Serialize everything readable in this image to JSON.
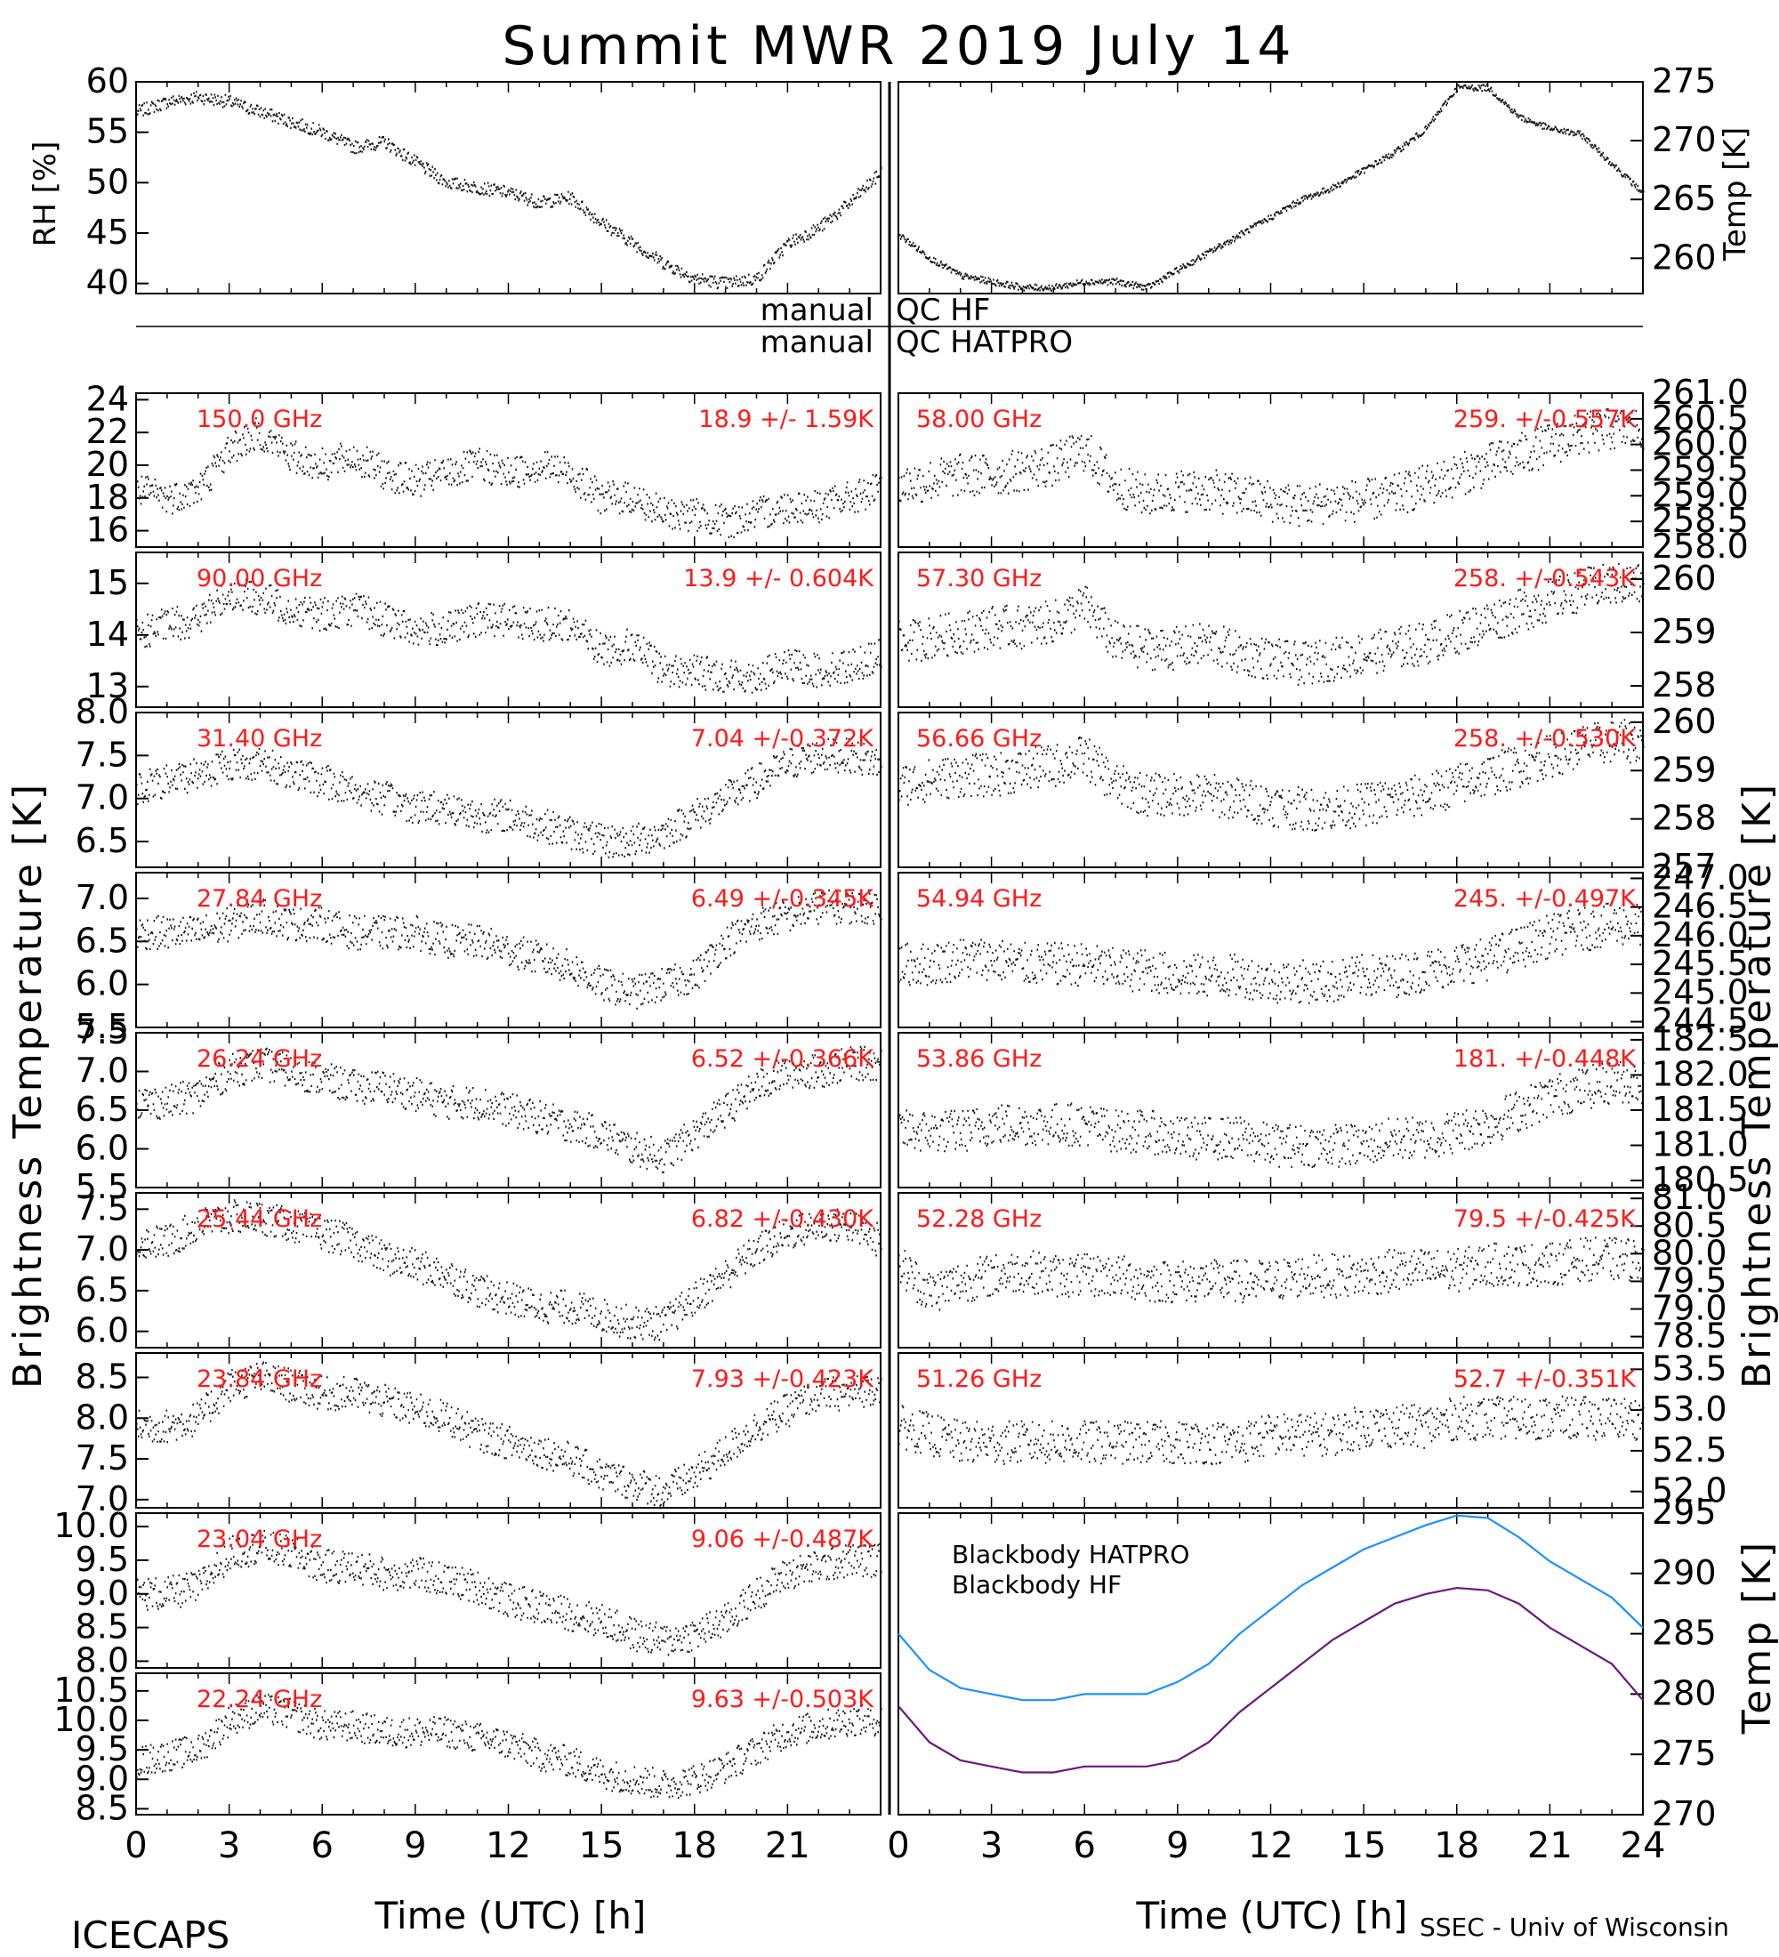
{
  "title": "Summit MWR 2019 July 14",
  "footer": {
    "left": "ICECAPS",
    "right": "SSEC - Univ of Wisconsin"
  },
  "qc": {
    "mid": "manual",
    "label1": "QC HF",
    "label2": "QC HATPRO",
    "mid2": "manual"
  },
  "axes": {
    "bottom_label_left": "Time (UTC) [h]",
    "bottom_label_right": "Time (UTC) [h]",
    "left_label": "Brightness Temperature [K]",
    "right_label_mid": "Brightness Temperature [K]",
    "rh_label": "RH [%]",
    "temp_label": "Temp [K]",
    "bb_temp_label": "Temp [K]",
    "x_ticks_left": [
      "0",
      "3",
      "6",
      "9",
      "12",
      "15",
      "18",
      "21"
    ],
    "x_ticks_right": [
      "0",
      "3",
      "6",
      "9",
      "12",
      "15",
      "18",
      "21",
      "24"
    ]
  },
  "chart_data": [
    {
      "type": "scatter",
      "name": "rh",
      "ylabel": "RH [%]",
      "xlim": [
        0,
        24
      ],
      "ylim": [
        39,
        60
      ],
      "yticks": [
        "60",
        "55",
        "50",
        "45",
        "40"
      ],
      "x": [
        0,
        1,
        2,
        3,
        4,
        5,
        6,
        7,
        8,
        9,
        10,
        11,
        12,
        13,
        14,
        15,
        16,
        17,
        18,
        19,
        20,
        21,
        22,
        23,
        24
      ],
      "y": [
        57,
        58,
        58.5,
        58,
        57,
        56,
        55,
        53.5,
        54,
        52,
        50,
        49.5,
        49,
        48,
        48.5,
        46,
        44,
        42,
        40.5,
        40,
        40.5,
        44,
        45.5,
        48,
        51
      ]
    },
    {
      "type": "scatter",
      "name": "temp",
      "ylabel": "Temp [K]",
      "xlim": [
        0,
        24
      ],
      "ylim": [
        257,
        275
      ],
      "yticks": [
        "275",
        "270",
        "265",
        "260"
      ],
      "x": [
        0,
        1,
        2,
        3,
        4,
        5,
        6,
        7,
        8,
        9,
        10,
        11,
        12,
        13,
        14,
        15,
        16,
        17,
        18,
        19,
        20,
        21,
        22,
        23,
        24
      ],
      "y": [
        262,
        260,
        258.5,
        258,
        257.5,
        257.5,
        258,
        258,
        257.5,
        259,
        260.5,
        262,
        263.5,
        265,
        266,
        267.5,
        269,
        271,
        274.5,
        274.5,
        272,
        271,
        270.5,
        268,
        265.5
      ]
    },
    {
      "type": "scatter",
      "freq": "150.0 GHz",
      "stat": "18.9 +/-  1.59K",
      "xlim": [
        0,
        24
      ],
      "ylim": [
        15,
        24.4
      ],
      "yticks": [
        "24",
        "22",
        "20",
        "18",
        "16"
      ],
      "x": [
        0,
        1,
        2,
        3,
        4,
        5,
        6,
        7,
        8,
        9,
        10,
        11,
        12,
        13,
        14,
        15,
        16,
        17,
        18,
        19,
        20,
        21,
        22,
        23,
        24
      ],
      "y": [
        18.5,
        18,
        18.5,
        21,
        22,
        20.5,
        20,
        20.5,
        19.5,
        19,
        19.5,
        20,
        19.5,
        20,
        19.5,
        18,
        18,
        17,
        17,
        16.5,
        17,
        17.5,
        17.5,
        18,
        18.5
      ]
    },
    {
      "type": "scatter",
      "freq": "90.00 GHz",
      "stat": "13.9 +/- 0.604K",
      "xlim": [
        0,
        24
      ],
      "ylim": [
        12.6,
        15.6
      ],
      "yticks": [
        "15",
        "14",
        "13"
      ],
      "x": [
        0,
        1,
        2,
        3,
        4,
        5,
        6,
        7,
        8,
        9,
        10,
        11,
        12,
        13,
        14,
        15,
        16,
        17,
        18,
        19,
        20,
        21,
        22,
        23,
        24
      ],
      "y": [
        14,
        14.2,
        14.3,
        14.8,
        14.7,
        14.5,
        14.4,
        14.5,
        14.3,
        14.1,
        14.1,
        14.3,
        14.3,
        14.2,
        14.2,
        13.7,
        13.8,
        13.3,
        13.3,
        13.2,
        13.2,
        13.4,
        13.3,
        13.4,
        13.6
      ]
    },
    {
      "type": "scatter",
      "freq": "31.40 GHz",
      "stat": "7.04 +/-0.372K",
      "xlim": [
        0,
        24
      ],
      "ylim": [
        6.2,
        8.0
      ],
      "yticks": [
        "8.0",
        "7.5",
        "7.0",
        "6.5"
      ],
      "x": [
        0,
        1,
        2,
        3,
        4,
        5,
        6,
        7,
        8,
        9,
        10,
        11,
        12,
        13,
        14,
        15,
        16,
        17,
        18,
        19,
        20,
        21,
        22,
        23,
        24
      ],
      "y": [
        7.1,
        7.2,
        7.3,
        7.4,
        7.4,
        7.3,
        7.2,
        7.1,
        7.0,
        6.9,
        6.9,
        6.8,
        6.8,
        6.7,
        6.6,
        6.5,
        6.5,
        6.6,
        6.8,
        7.0,
        7.2,
        7.4,
        7.5,
        7.5,
        7.4
      ]
    },
    {
      "type": "scatter",
      "freq": "27.84 GHz",
      "stat": "6.49 +/-0.345K",
      "xlim": [
        0,
        24
      ],
      "ylim": [
        5.5,
        7.3
      ],
      "yticks": [
        "7.0",
        "6.5",
        "6.0",
        "5.5"
      ],
      "x": [
        0,
        1,
        2,
        3,
        4,
        5,
        6,
        7,
        8,
        9,
        10,
        11,
        12,
        13,
        14,
        15,
        16,
        17,
        18,
        19,
        20,
        21,
        22,
        23,
        24
      ],
      "y": [
        6.6,
        6.6,
        6.6,
        6.7,
        6.8,
        6.7,
        6.7,
        6.6,
        6.6,
        6.6,
        6.5,
        6.5,
        6.4,
        6.3,
        6.2,
        6.0,
        5.9,
        6.0,
        6.1,
        6.5,
        6.7,
        6.8,
        6.9,
        6.9,
        6.9
      ]
    },
    {
      "type": "scatter",
      "freq": "26.24 GHz",
      "stat": "6.52 +/-0.366K",
      "xlim": [
        0,
        24
      ],
      "ylim": [
        5.5,
        7.5
      ],
      "yticks": [
        "7.5",
        "7.0",
        "6.5",
        "6.0",
        "5.5"
      ],
      "x": [
        0,
        1,
        2,
        3,
        4,
        5,
        6,
        7,
        8,
        9,
        10,
        11,
        12,
        13,
        14,
        15,
        16,
        17,
        18,
        19,
        20,
        21,
        22,
        23,
        24
      ],
      "y": [
        6.6,
        6.6,
        6.7,
        7.0,
        7.1,
        7.0,
        6.9,
        6.8,
        6.8,
        6.7,
        6.6,
        6.6,
        6.5,
        6.4,
        6.3,
        6.2,
        6.0,
        5.9,
        6.2,
        6.5,
        6.8,
        7.0,
        7.0,
        7.1,
        7.1
      ]
    },
    {
      "type": "scatter",
      "freq": "25.44 GHz",
      "stat": "6.82 +/-0.430K",
      "xlim": [
        0,
        24
      ],
      "ylim": [
        5.8,
        7.7
      ],
      "yticks": [
        "7.5",
        "7.0",
        "6.5",
        "6.0"
      ],
      "x": [
        0,
        1,
        2,
        3,
        4,
        5,
        6,
        7,
        8,
        9,
        10,
        11,
        12,
        13,
        14,
        15,
        16,
        17,
        18,
        19,
        20,
        21,
        22,
        23,
        24
      ],
      "y": [
        7.1,
        7.1,
        7.3,
        7.4,
        7.4,
        7.3,
        7.2,
        7.1,
        6.9,
        6.8,
        6.7,
        6.5,
        6.4,
        6.3,
        6.3,
        6.2,
        6.1,
        6.1,
        6.4,
        6.7,
        7.0,
        7.2,
        7.3,
        7.3,
        7.1
      ]
    },
    {
      "type": "scatter",
      "freq": "23.84 GHz",
      "stat": "7.93 +/-0.423K",
      "xlim": [
        0,
        24
      ],
      "ylim": [
        6.9,
        8.8
      ],
      "yticks": [
        "8.5",
        "8.0",
        "7.5",
        "7.0"
      ],
      "x": [
        0,
        1,
        2,
        3,
        4,
        5,
        6,
        7,
        8,
        9,
        10,
        11,
        12,
        13,
        14,
        15,
        16,
        17,
        18,
        19,
        20,
        21,
        22,
        23,
        24
      ],
      "y": [
        7.9,
        7.9,
        8.0,
        8.4,
        8.5,
        8.4,
        8.3,
        8.3,
        8.2,
        8.1,
        8.0,
        7.8,
        7.7,
        7.6,
        7.5,
        7.3,
        7.2,
        7.1,
        7.3,
        7.6,
        7.9,
        8.1,
        8.3,
        8.3,
        8.4
      ]
    },
    {
      "type": "scatter",
      "freq": "23.04 GHz",
      "stat": "9.06 +/-0.487K",
      "xlim": [
        0,
        24
      ],
      "ylim": [
        7.9,
        10.2
      ],
      "yticks": [
        "10.0",
        "9.5",
        "9.0",
        "8.5",
        "8.0"
      ],
      "x": [
        0,
        1,
        2,
        3,
        4,
        5,
        6,
        7,
        8,
        9,
        10,
        11,
        12,
        13,
        14,
        15,
        16,
        17,
        18,
        19,
        20,
        21,
        22,
        23,
        24
      ],
      "y": [
        9.0,
        9.0,
        9.1,
        9.6,
        9.7,
        9.6,
        9.4,
        9.4,
        9.3,
        9.3,
        9.2,
        9.1,
        8.9,
        8.8,
        8.7,
        8.6,
        8.4,
        8.3,
        8.4,
        8.6,
        9.0,
        9.3,
        9.4,
        9.5,
        9.5
      ]
    },
    {
      "type": "scatter",
      "freq": "22.24 GHz",
      "stat": "9.63 +/-0.503K",
      "xlim": [
        0,
        24
      ],
      "ylim": [
        8.4,
        10.8
      ],
      "yticks": [
        "10.5",
        "10.0",
        "9.5",
        "9.0",
        "8.5"
      ],
      "x": [
        0,
        1,
        2,
        3,
        4,
        5,
        6,
        7,
        8,
        9,
        10,
        11,
        12,
        13,
        14,
        15,
        16,
        17,
        18,
        19,
        20,
        21,
        22,
        23,
        24
      ],
      "y": [
        9.3,
        9.4,
        9.5,
        10.0,
        10.2,
        10.1,
        9.9,
        9.9,
        9.8,
        9.8,
        9.8,
        9.7,
        9.6,
        9.4,
        9.3,
        9.1,
        9.0,
        8.9,
        9.0,
        9.2,
        9.5,
        9.8,
        9.9,
        10.0,
        10.0
      ]
    },
    {
      "type": "scatter",
      "freq": "58.00 GHz",
      "stat": "259. +/-0.557K",
      "xlim": [
        0,
        24
      ],
      "ylim": [
        258,
        261
      ],
      "yticks": [
        "261.0",
        "260.5",
        "260.0",
        "259.5",
        "259.0",
        "258.5",
        "258.0"
      ],
      "x": [
        0,
        1,
        2,
        3,
        4,
        5,
        6,
        7,
        8,
        9,
        10,
        11,
        12,
        13,
        14,
        15,
        16,
        17,
        18,
        19,
        20,
        21,
        22,
        23,
        24
      ],
      "y": [
        259.2,
        259.3,
        259.4,
        259.4,
        259.5,
        259.6,
        259.9,
        259.2,
        259.0,
        259.1,
        259.1,
        259.0,
        258.9,
        258.8,
        258.9,
        258.9,
        259.0,
        259.2,
        259.4,
        259.6,
        259.8,
        260.0,
        260.2,
        260.3,
        260.3
      ]
    },
    {
      "type": "scatter",
      "freq": "57.30 GHz",
      "stat": "258. +/-0.543K",
      "xlim": [
        0,
        24
      ],
      "ylim": [
        257.6,
        260.5
      ],
      "yticks": [
        "260",
        "259",
        "258"
      ],
      "x": [
        0,
        1,
        2,
        3,
        4,
        5,
        6,
        7,
        8,
        9,
        10,
        11,
        12,
        13,
        14,
        15,
        16,
        17,
        18,
        19,
        20,
        21,
        22,
        23,
        24
      ],
      "y": [
        258.8,
        258.9,
        259.0,
        259.1,
        259.1,
        259.2,
        259.5,
        258.8,
        258.7,
        258.7,
        258.8,
        258.6,
        258.5,
        258.4,
        258.5,
        258.6,
        258.7,
        258.8,
        259.0,
        259.2,
        259.4,
        259.6,
        259.8,
        259.9,
        259.9
      ]
    },
    {
      "type": "scatter",
      "freq": "56.66 GHz",
      "stat": "258. +/-0.530K",
      "xlim": [
        0,
        24
      ],
      "ylim": [
        257,
        260.2
      ],
      "yticks": [
        "260",
        "259",
        "258",
        "257"
      ],
      "x": [
        0,
        1,
        2,
        3,
        4,
        5,
        6,
        7,
        8,
        9,
        10,
        11,
        12,
        13,
        14,
        15,
        16,
        17,
        18,
        19,
        20,
        21,
        22,
        23,
        24
      ],
      "y": [
        258.7,
        258.8,
        258.9,
        258.9,
        259.0,
        259.1,
        259.3,
        258.7,
        258.5,
        258.5,
        258.5,
        258.4,
        258.3,
        258.2,
        258.2,
        258.3,
        258.4,
        258.5,
        258.7,
        258.9,
        259.1,
        259.3,
        259.5,
        259.6,
        259.6
      ]
    },
    {
      "type": "scatter",
      "freq": "54.94 GHz",
      "stat": "245. +/-0.497K",
      "xlim": [
        0,
        24
      ],
      "ylim": [
        244.4,
        247.1
      ],
      "yticks": [
        "247.0",
        "246.5",
        "246.0",
        "245.5",
        "245.0",
        "244.5"
      ],
      "x": [
        0,
        1,
        2,
        3,
        4,
        5,
        6,
        7,
        8,
        9,
        10,
        11,
        12,
        13,
        14,
        15,
        16,
        17,
        18,
        19,
        20,
        21,
        22,
        23,
        24
      ],
      "y": [
        245.5,
        245.5,
        245.6,
        245.6,
        245.5,
        245.5,
        245.5,
        245.4,
        245.4,
        245.3,
        245.3,
        245.3,
        245.2,
        245.2,
        245.2,
        245.3,
        245.3,
        245.4,
        245.5,
        245.6,
        245.8,
        246.0,
        246.1,
        246.2,
        246.2
      ]
    },
    {
      "type": "scatter",
      "freq": "53.86 GHz",
      "stat": "181. +/-0.448K",
      "xlim": [
        0,
        24
      ],
      "ylim": [
        180.4,
        182.6
      ],
      "yticks": [
        "182.5",
        "182.0",
        "181.5",
        "181.0",
        "180.5"
      ],
      "x": [
        0,
        1,
        2,
        3,
        4,
        5,
        6,
        7,
        8,
        9,
        10,
        11,
        12,
        13,
        14,
        15,
        16,
        17,
        18,
        19,
        20,
        21,
        22,
        23,
        24
      ],
      "y": [
        181.2,
        181.2,
        181.2,
        181.3,
        181.3,
        181.3,
        181.3,
        181.2,
        181.2,
        181.1,
        181.1,
        181.1,
        181.0,
        181.0,
        181.0,
        181.0,
        181.1,
        181.1,
        181.2,
        181.3,
        181.5,
        181.7,
        181.8,
        181.9,
        181.9
      ]
    },
    {
      "type": "scatter",
      "freq": "52.28 GHz",
      "stat": "79.5 +/-0.425K",
      "xlim": [
        0,
        24
      ],
      "ylim": [
        78.3,
        81.1
      ],
      "yticks": [
        "81.0",
        "80.5",
        "80.0",
        "79.5",
        "79.0",
        "78.5"
      ],
      "x": [
        0,
        1,
        2,
        3,
        4,
        5,
        6,
        7,
        8,
        9,
        10,
        11,
        12,
        13,
        14,
        15,
        16,
        17,
        18,
        19,
        20,
        21,
        22,
        23,
        24
      ],
      "y": [
        79.8,
        79.3,
        79.5,
        79.6,
        79.7,
        79.6,
        79.6,
        79.6,
        79.5,
        79.5,
        79.5,
        79.5,
        79.5,
        79.6,
        79.6,
        79.6,
        79.7,
        79.7,
        79.7,
        79.8,
        79.8,
        79.8,
        79.9,
        79.9,
        79.9
      ]
    },
    {
      "type": "scatter",
      "freq": "51.26 GHz",
      "stat": "52.7 +/-0.351K",
      "xlim": [
        0,
        24
      ],
      "ylim": [
        51.8,
        53.7
      ],
      "yticks": [
        "53.5",
        "53.0",
        "52.5",
        "52.0"
      ],
      "x": [
        0,
        1,
        2,
        3,
        4,
        5,
        6,
        7,
        8,
        9,
        10,
        11,
        12,
        13,
        14,
        15,
        16,
        17,
        18,
        19,
        20,
        21,
        22,
        23,
        24
      ],
      "y": [
        52.8,
        52.7,
        52.6,
        52.6,
        52.6,
        52.6,
        52.6,
        52.6,
        52.6,
        52.6,
        52.6,
        52.6,
        52.7,
        52.7,
        52.7,
        52.8,
        52.8,
        52.8,
        52.9,
        52.9,
        52.9,
        52.9,
        52.9,
        52.9,
        52.9
      ]
    },
    {
      "type": "line",
      "name": "blackbody",
      "ylabel": "Temp [K]",
      "xlim": [
        0,
        24
      ],
      "ylim": [
        270,
        295
      ],
      "yticks": [
        "295",
        "290",
        "285",
        "280",
        "275",
        "270"
      ],
      "x": [
        0,
        1,
        2,
        3,
        4,
        5,
        6,
        7,
        8,
        9,
        10,
        11,
        12,
        13,
        14,
        15,
        16,
        17,
        18,
        19,
        20,
        21,
        22,
        23,
        24
      ],
      "series": [
        {
          "name": "Blackbody HATPRO",
          "color": "#1e90ff",
          "values": [
            285,
            282,
            280.5,
            280,
            279.5,
            279.5,
            280,
            280,
            280,
            281,
            282.5,
            285,
            287,
            289,
            290.5,
            292,
            293,
            294,
            294.8,
            294.6,
            293,
            291,
            289.5,
            288,
            285.5
          ]
        },
        {
          "name": "Blackbody HF",
          "color": "#6a1a7a",
          "values": [
            279,
            276,
            274.5,
            274,
            273.5,
            273.5,
            274,
            274,
            274,
            274.5,
            276,
            278.5,
            280.5,
            282.5,
            284.5,
            286,
            287.5,
            288.3,
            288.8,
            288.6,
            287.5,
            285.5,
            284,
            282.5,
            279.5
          ]
        }
      ]
    }
  ]
}
